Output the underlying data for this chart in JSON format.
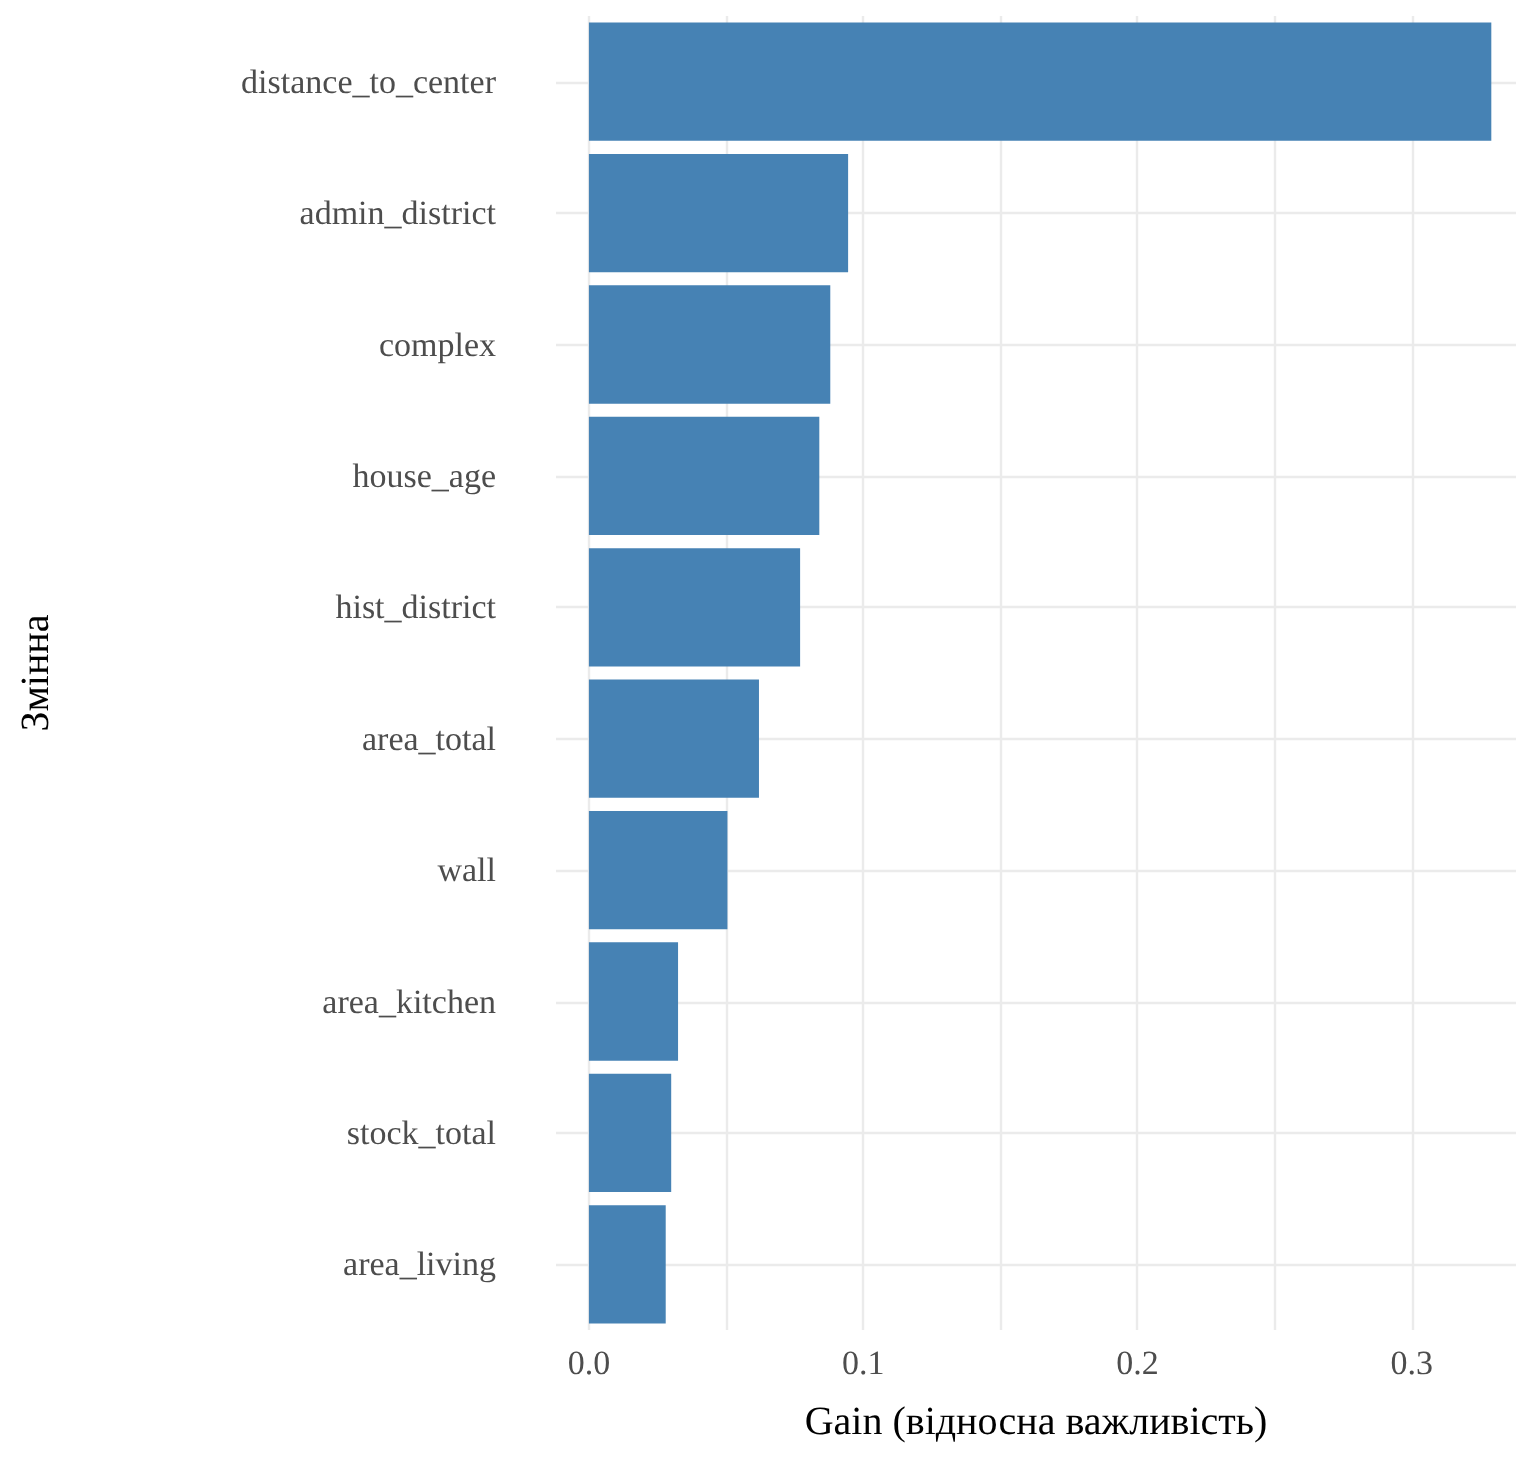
{
  "chart_data": {
    "type": "bar",
    "orientation": "horizontal",
    "xlabel": "Gain (відносна важливість)",
    "ylabel": "Змінна",
    "categories": [
      "distance_to_center",
      "admin_district",
      "complex",
      "house_age",
      "hist_district",
      "area_total",
      "wall",
      "area_kitchen",
      "stock_total",
      "area_living"
    ],
    "series": [
      {
        "color": "#4682b4",
        "values": [
          0.329,
          0.0945,
          0.088,
          0.084,
          0.077,
          0.062,
          0.0505,
          0.0325,
          0.03,
          0.028
        ]
      }
    ],
    "xlim": [
      -0.012,
      0.338
    ],
    "xticks": [
      {
        "value": 0,
        "label": "0.0"
      },
      {
        "value": 0.05,
        "label": null
      },
      {
        "value": 0.1,
        "label": "0.1"
      },
      {
        "value": 0.15,
        "label": null
      },
      {
        "value": 0.2,
        "label": "0.2"
      },
      {
        "value": 0.25,
        "label": null
      },
      {
        "value": 0.3,
        "label": "0.3"
      }
    ],
    "grid": true
  }
}
